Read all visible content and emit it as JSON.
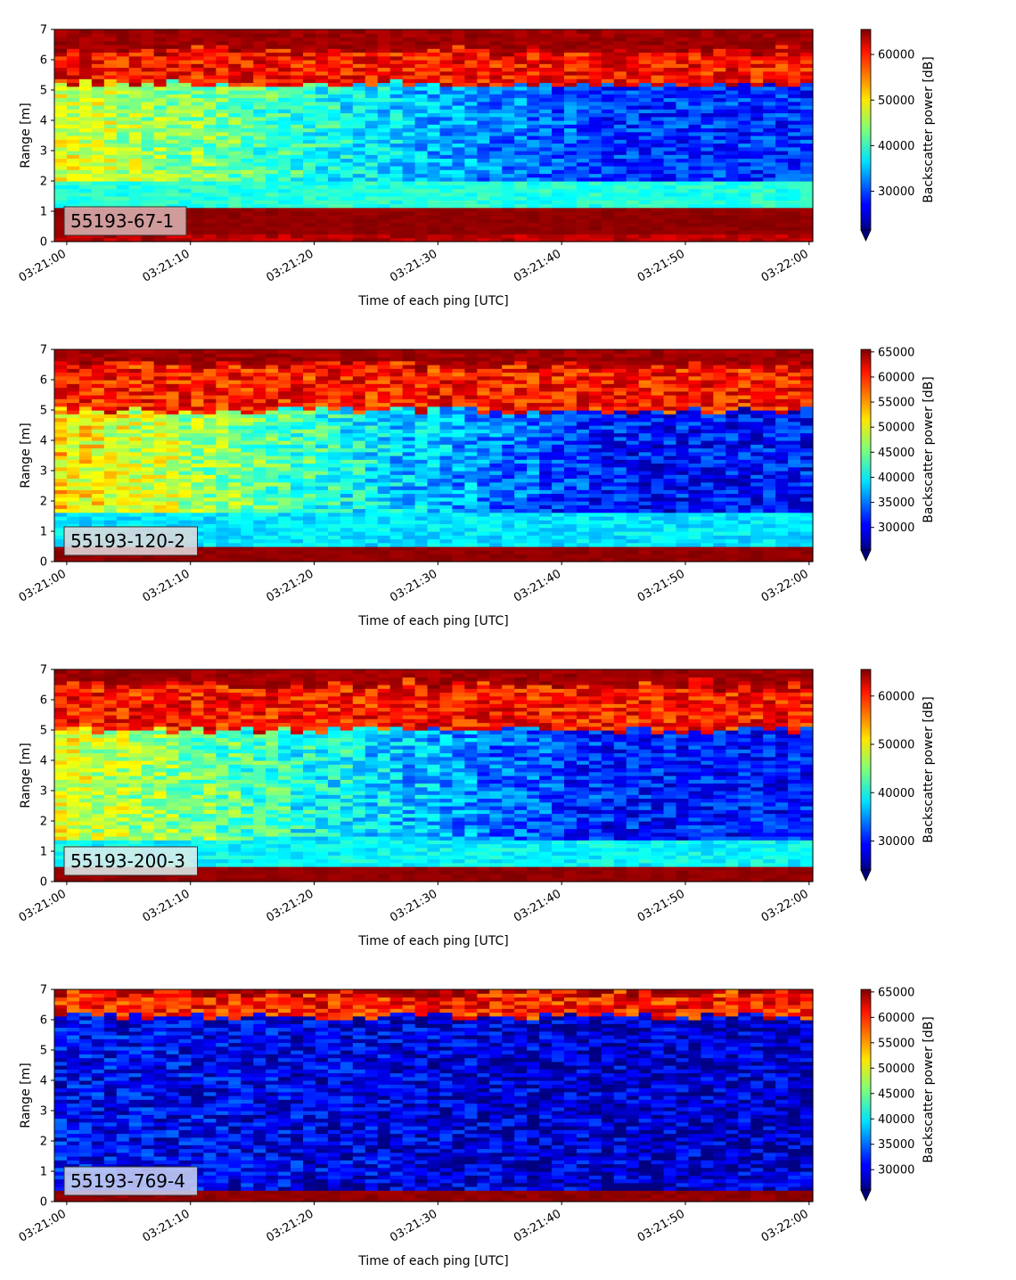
{
  "chart_data": [
    {
      "type": "heatmap",
      "panel_label": "55193-67-1",
      "xlabel": "Time of each ping [UTC]",
      "ylabel": "Range [m]",
      "colorbar_label": "Backscatter power [dB]",
      "colormap": "jet",
      "extend": "min",
      "xlim_seconds": [
        -1,
        60.3
      ],
      "x_ticks": [
        "03:21:00",
        "03:21:10",
        "03:21:20",
        "03:21:30",
        "03:21:40",
        "03:21:50",
        "03:22:00"
      ],
      "ylim": [
        0,
        7
      ],
      "y_ticks": [
        0,
        1,
        2,
        3,
        4,
        5,
        6,
        7
      ],
      "color_range": [
        21500,
        65500
      ],
      "colorbar_ticks": [
        30000,
        40000,
        50000,
        60000
      ],
      "profile": {
        "bottom_band_top": 1.15,
        "hot_strip_top": 0.22,
        "mid_band_top": 1.95,
        "upper_start_early": 48000,
        "upper_start_late": 29000,
        "surface_top": 5.2,
        "cap_bottom": 6.3
      },
      "label_box_color": "#d8b0b0"
    },
    {
      "type": "heatmap",
      "panel_label": "55193-120-2",
      "xlabel": "Time of each ping [UTC]",
      "ylabel": "Range [m]",
      "colorbar_label": "Backscatter power [dB]",
      "colormap": "jet",
      "extend": "min",
      "xlim_seconds": [
        -1,
        60.3
      ],
      "x_ticks": [
        "03:21:00",
        "03:21:10",
        "03:21:20",
        "03:21:30",
        "03:21:40",
        "03:21:50",
        "03:22:00"
      ],
      "ylim": [
        0,
        7
      ],
      "y_ticks": [
        0,
        1,
        2,
        3,
        4,
        5,
        6,
        7
      ],
      "color_range": [
        25500,
        65500
      ],
      "colorbar_ticks": [
        30000,
        35000,
        40000,
        45000,
        50000,
        55000,
        60000,
        65000
      ],
      "profile": {
        "bottom_band_top": 0.55,
        "hot_strip_top": 0.0,
        "mid_band_top": 1.6,
        "upper_start_early": 52000,
        "upper_start_late": 31000,
        "surface_top": 5.0,
        "cap_bottom": 6.5
      },
      "label_box_color": "#e0d8dc"
    },
    {
      "type": "heatmap",
      "panel_label": "55193-200-3",
      "xlabel": "Time of each ping [UTC]",
      "ylabel": "Range [m]",
      "colorbar_label": "Backscatter power [dB]",
      "colormap": "jet",
      "extend": "min",
      "xlim_seconds": [
        -1,
        60.3
      ],
      "x_ticks": [
        "03:21:00",
        "03:21:10",
        "03:21:20",
        "03:21:30",
        "03:21:40",
        "03:21:50",
        "03:22:00"
      ],
      "ylim": [
        0,
        7
      ],
      "y_ticks": [
        0,
        1,
        2,
        3,
        4,
        5,
        6,
        7
      ],
      "color_range": [
        24000,
        65500
      ],
      "colorbar_ticks": [
        30000,
        40000,
        50000,
        60000
      ],
      "profile": {
        "bottom_band_top": 0.45,
        "hot_strip_top": 0.0,
        "mid_band_top": 1.4,
        "upper_start_early": 49000,
        "upper_start_late": 30000,
        "surface_top": 5.0,
        "cap_bottom": 6.5
      },
      "label_box_color": "#dcecec"
    },
    {
      "type": "heatmap",
      "panel_label": "55193-769-4",
      "xlabel": "Time of each ping [UTC]",
      "ylabel": "Range [m]",
      "colorbar_label": "Backscatter power [dB]",
      "colormap": "jet",
      "extend": "min",
      "xlim_seconds": [
        -1,
        60.3
      ],
      "x_ticks": [
        "03:21:00",
        "03:21:10",
        "03:21:20",
        "03:21:30",
        "03:21:40",
        "03:21:50",
        "03:22:00"
      ],
      "ylim": [
        0,
        7
      ],
      "y_ticks": [
        0,
        1,
        2,
        3,
        4,
        5,
        6,
        7
      ],
      "color_range": [
        26000,
        65500
      ],
      "colorbar_ticks": [
        30000,
        35000,
        40000,
        45000,
        50000,
        55000,
        60000,
        65000
      ],
      "profile": {
        "bottom_band_top": 0.4,
        "hot_strip_top": 0.0,
        "mid_band_top": 0.0,
        "upper_start_early": 31000,
        "upper_start_late": 29000,
        "surface_top": 6.1,
        "cap_bottom": 6.9
      },
      "label_box_color": "#c8d0f0"
    }
  ]
}
